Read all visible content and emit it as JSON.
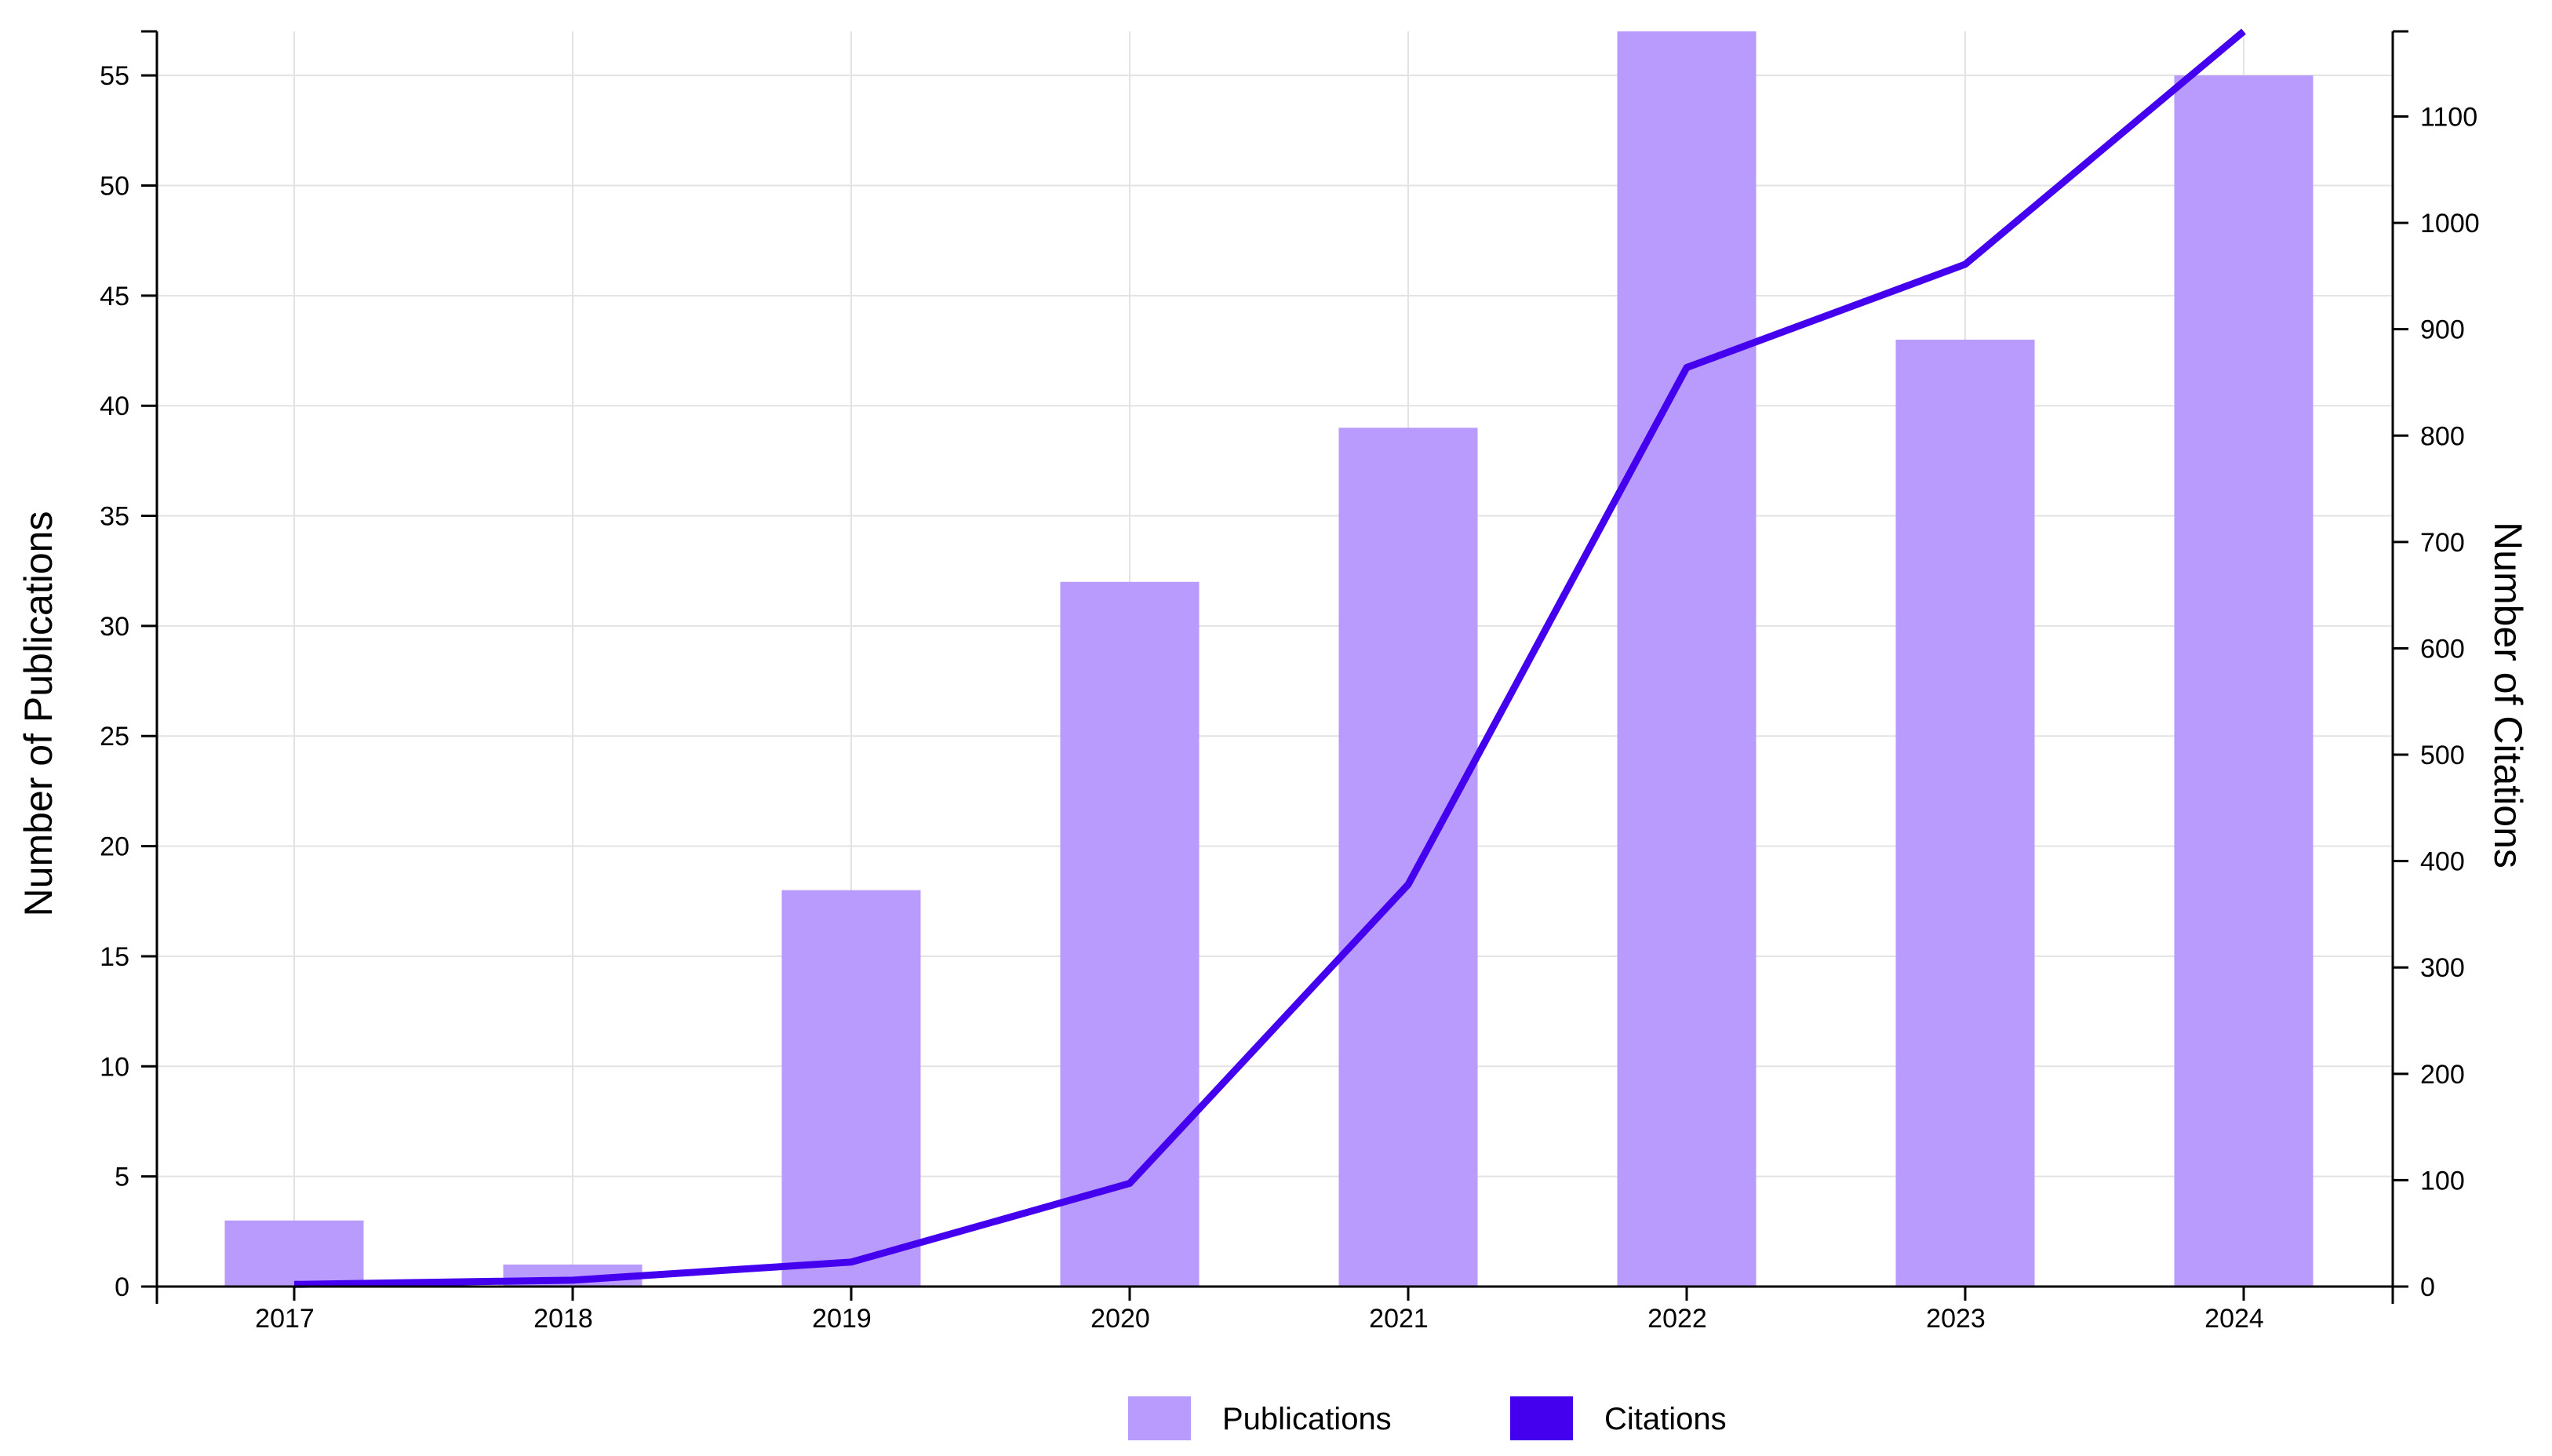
{
  "chart_data": {
    "type": "bar",
    "categories": [
      "2017",
      "2018",
      "2019",
      "2020",
      "2021",
      "2022",
      "2023",
      "2024"
    ],
    "series": [
      {
        "name": "Publications",
        "type": "bar",
        "axis": "left",
        "color": "#b99afd",
        "values": [
          3,
          1,
          18,
          32,
          39,
          57,
          43,
          55
        ]
      },
      {
        "name": "Citations",
        "type": "line",
        "axis": "right",
        "color": "#4400ee",
        "values": [
          2,
          6,
          23,
          97,
          378,
          864,
          961,
          1180
        ]
      }
    ],
    "ylabel": "Number of Publications",
    "y2label": "Number of Citations",
    "ylim": [
      0,
      57
    ],
    "y2lim": [
      0,
      1180
    ],
    "yticks": [
      0,
      5,
      10,
      15,
      20,
      25,
      30,
      35,
      40,
      45,
      50,
      55
    ],
    "y2ticks": [
      0,
      100,
      200,
      300,
      400,
      500,
      600,
      700,
      800,
      900,
      1000,
      1100
    ],
    "grid": true,
    "legend_position": "bottom"
  }
}
